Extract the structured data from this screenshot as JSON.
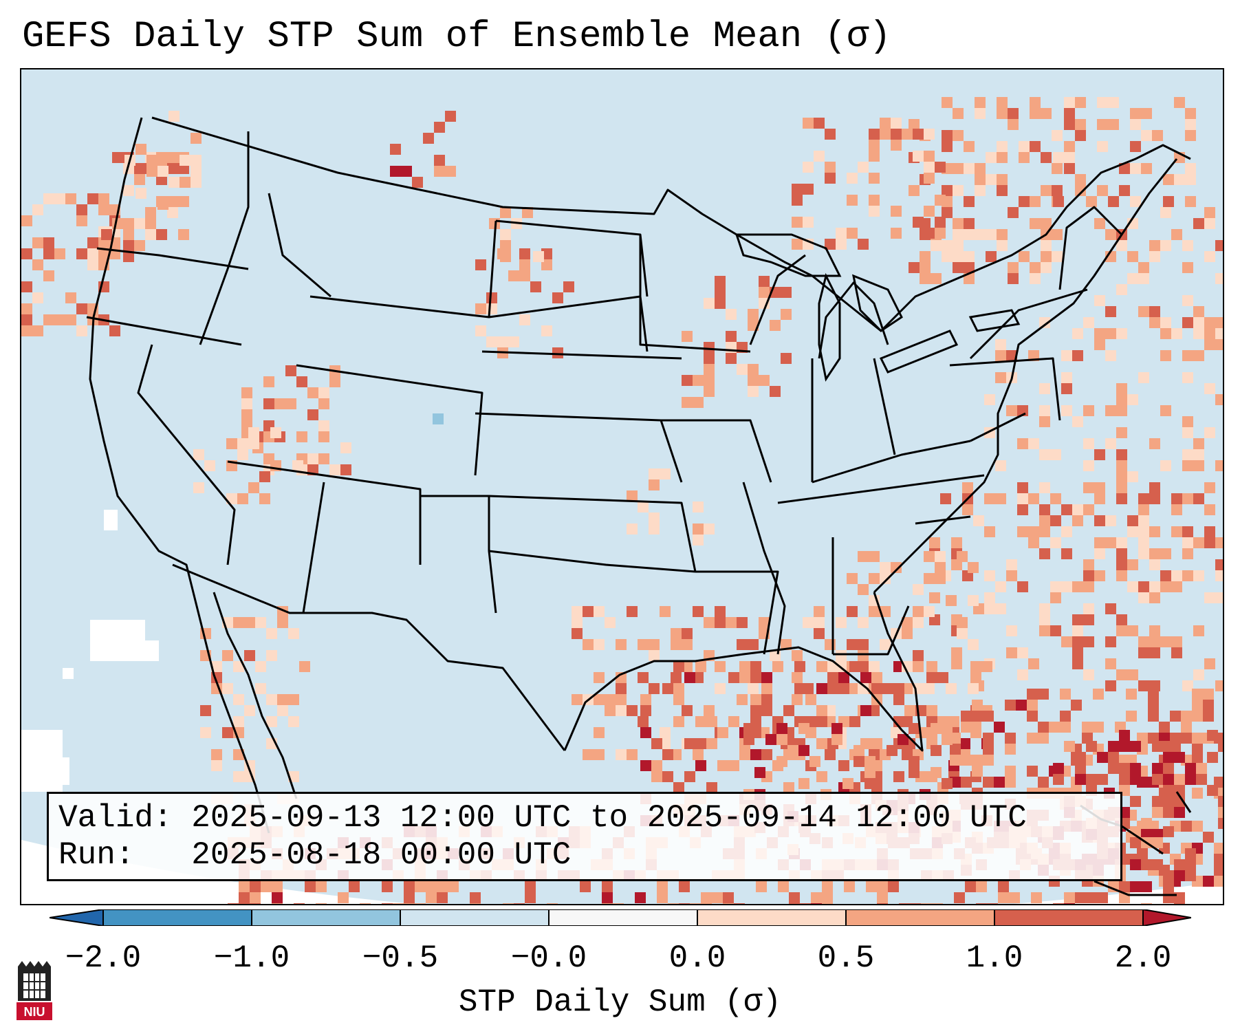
{
  "title": "GEFS Daily STP Sum of Ensemble Mean (σ)",
  "info": {
    "valid_label": "Valid:",
    "valid_value": "2025-09-13 12:00 UTC to 2025-09-14 12:00 UTC",
    "run_label": "Run:",
    "run_value": "2025-08-18 00:00 UTC"
  },
  "map": {
    "region": "Continental United States",
    "background_color": "#d1e5f0",
    "offmap_color": "#ffffff",
    "border_color": "#000000"
  },
  "colorbar": {
    "title": "STP Daily Sum (σ)",
    "tick_labels": [
      "−2.0",
      "−1.0",
      "−0.5",
      "−0.0",
      "0.0",
      "0.5",
      "1.0",
      "2.0"
    ],
    "bins": [
      {
        "color": "#2166ac",
        "range": "< -2.0"
      },
      {
        "color": "#4393c3",
        "range": "-2.0 to -1.0"
      },
      {
        "color": "#92c5de",
        "range": "-1.0 to -0.5"
      },
      {
        "color": "#d1e5f0",
        "range": "-0.5 to -0.0"
      },
      {
        "color": "#f7f7f7",
        "range": "-0.0 to 0.0"
      },
      {
        "color": "#fddbc7",
        "range": "0.0 to 0.5"
      },
      {
        "color": "#f4a582",
        "range": "0.5 to 1.0"
      },
      {
        "color": "#d6604d",
        "range": "1.0 to 2.0"
      },
      {
        "color": "#b2182b",
        "range": "> 2.0"
      }
    ]
  },
  "logo": {
    "text": "NIU"
  }
}
